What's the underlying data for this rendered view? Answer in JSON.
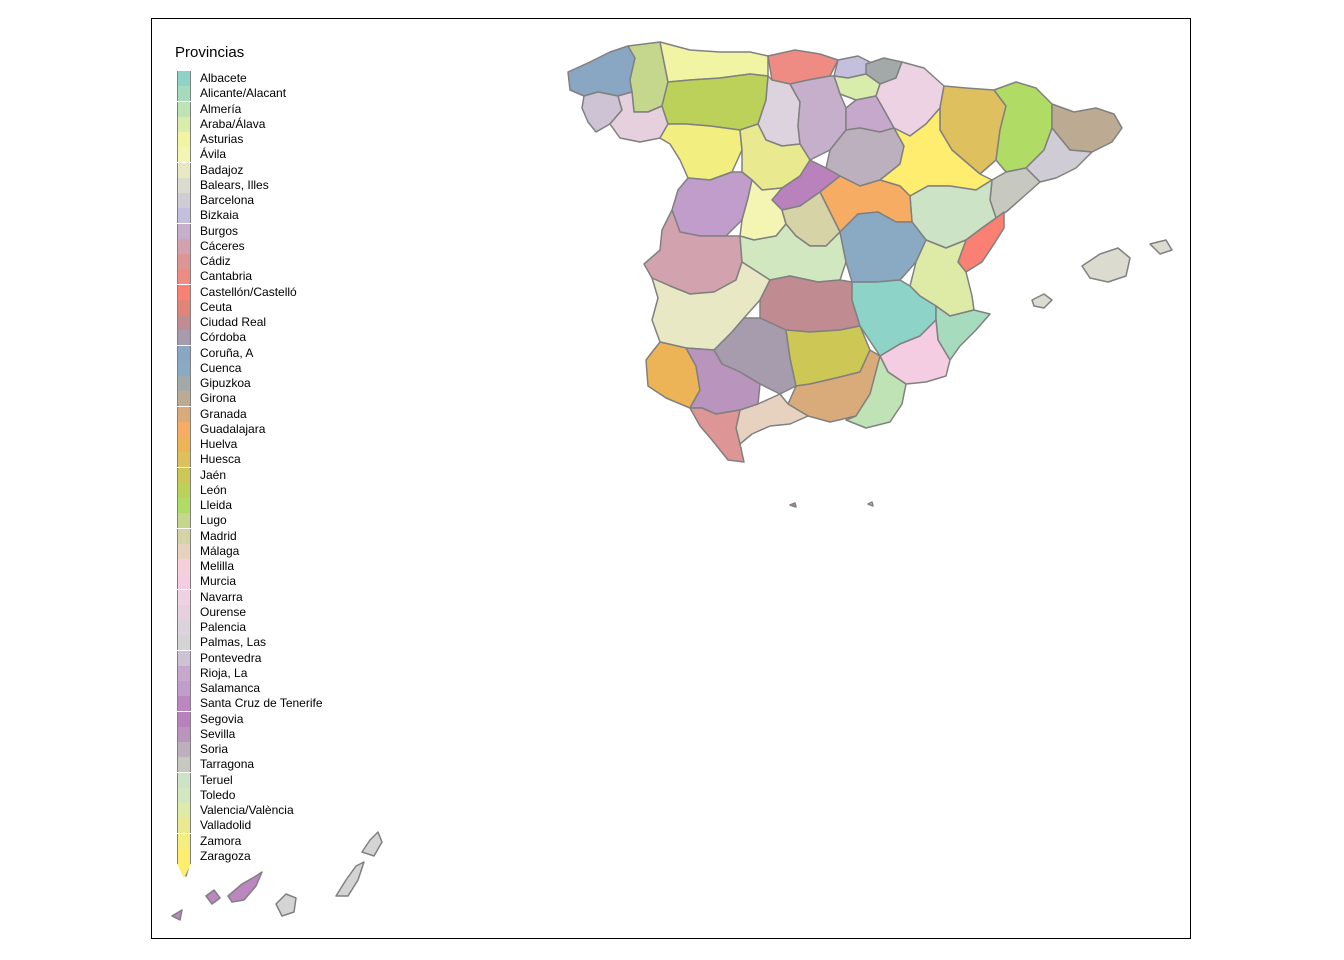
{
  "legend": {
    "title": "Provincias",
    "items": [
      {
        "label": "Albacete",
        "color": "#8DD3C7"
      },
      {
        "label": "Alicante/Alacant",
        "color": "#A6DBBE"
      },
      {
        "label": "Almería",
        "color": "#BFE3B5"
      },
      {
        "label": "Araba/Álava",
        "color": "#D8ECAC"
      },
      {
        "label": "Asturias",
        "color": "#F1F5A3"
      },
      {
        "label": "Ávila",
        "color": "#F5F5B3"
      },
      {
        "label": "Badajoz",
        "color": "#E8E8C4"
      },
      {
        "label": "Balears, Illes",
        "color": "#DCDBCF"
      },
      {
        "label": "Barcelona",
        "color": "#CFCCD6"
      },
      {
        "label": "Bizkaia",
        "color": "#C3BFDC"
      },
      {
        "label": "Burgos",
        "color": "#C6AFCB"
      },
      {
        "label": "Cáceres",
        "color": "#D2A2AE"
      },
      {
        "label": "Cádiz",
        "color": "#DE9595"
      },
      {
        "label": "Cantabria",
        "color": "#EE8C83"
      },
      {
        "label": "Castellón/Castelló",
        "color": "#F98072"
      },
      {
        "label": "Ceuta",
        "color": "#E08478"
      },
      {
        "label": "Ciudad Real",
        "color": "#C08C92"
      },
      {
        "label": "Córdoba",
        "color": "#A69CAE"
      },
      {
        "label": "Coruña, A",
        "color": "#89A6C3"
      },
      {
        "label": "Cuenca",
        "color": "#8AAAC3"
      },
      {
        "label": "Gipuzkoa",
        "color": "#A3A8A8"
      },
      {
        "label": "Girona",
        "color": "#BCAA92"
      },
      {
        "label": "Granada",
        "color": "#D9AA7A"
      },
      {
        "label": "Guadalajara",
        "color": "#F6AC63"
      },
      {
        "label": "Huelva",
        "color": "#EDB457"
      },
      {
        "label": "Huesca",
        "color": "#DFC05E"
      },
      {
        "label": "Jaén",
        "color": "#CDC756"
      },
      {
        "label": "León",
        "color": "#BCD159"
      },
      {
        "label": "Lleida",
        "color": "#B0DB64"
      },
      {
        "label": "Lugo",
        "color": "#C4D78C"
      },
      {
        "label": "Madrid",
        "color": "#D6D3A6"
      },
      {
        "label": "Málaga",
        "color": "#E7D2BF"
      },
      {
        "label": "Melilla",
        "color": "#F6D0D8"
      },
      {
        "label": "Murcia",
        "color": "#F5CDE2"
      },
      {
        "label": "Navarra",
        "color": "#EDD2E3"
      },
      {
        "label": "Ourense",
        "color": "#E6D0DE"
      },
      {
        "label": "Palencia",
        "color": "#DDD3DE"
      },
      {
        "label": "Palmas, Las",
        "color": "#D4D4D4"
      },
      {
        "label": "Pontevedra",
        "color": "#CDC3D4"
      },
      {
        "label": "Rioja, La",
        "color": "#C6A8CC"
      },
      {
        "label": "Salamanca",
        "color": "#C09DCB"
      },
      {
        "label": "Santa Cruz de Tenerife",
        "color": "#BC86C0"
      },
      {
        "label": "Segovia",
        "color": "#B982BC"
      },
      {
        "label": "Sevilla",
        "color": "#B994BD"
      },
      {
        "label": "Soria",
        "color": "#BCB0BE"
      },
      {
        "label": "Tarragona",
        "color": "#C7C8BF"
      },
      {
        "label": "Teruel",
        "color": "#CCE3C6"
      },
      {
        "label": "Toledo",
        "color": "#D0E7BF"
      },
      {
        "label": "Valencia/València",
        "color": "#DDEBA7"
      },
      {
        "label": "Valladolid",
        "color": "#E9E990"
      },
      {
        "label": "Zamora",
        "color": "#F2EE80"
      },
      {
        "label": "Zaragoza",
        "color": "#FFED6F"
      }
    ]
  }
}
